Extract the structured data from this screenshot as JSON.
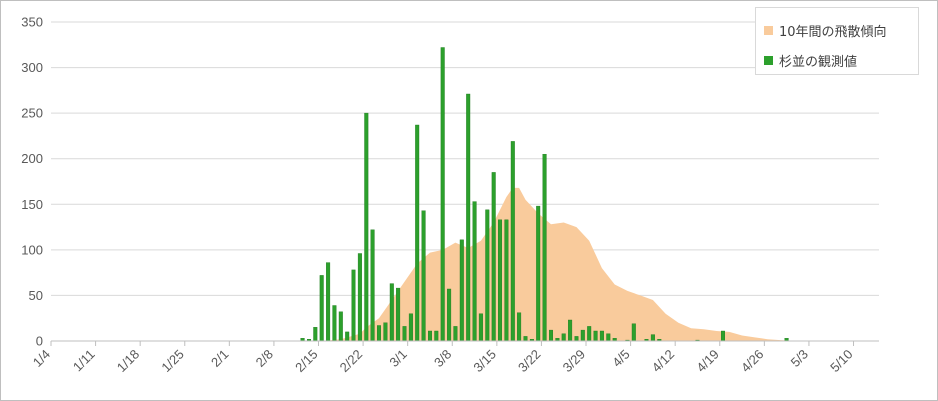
{
  "chart_data": {
    "type": "bar",
    "start_date": "1/4",
    "day_count": 130,
    "ylim": [
      0,
      350
    ],
    "yticks": [
      0,
      50,
      100,
      150,
      200,
      250,
      300,
      350
    ],
    "xtick_labels": [
      "1/4",
      "1/11",
      "1/18",
      "1/25",
      "2/1",
      "2/8",
      "2/15",
      "2/22",
      "3/1",
      "3/8",
      "3/15",
      "3/22",
      "3/29",
      "4/5",
      "4/12",
      "4/19",
      "4/26",
      "5/3",
      "5/10"
    ],
    "grid": true,
    "legend_position": "top-right",
    "colors": {
      "area": "#F9CB9C",
      "bars": "#2CA02C",
      "bar_edge": "#1E7B1E",
      "grid": "#D9D9D9",
      "axis": "#BFBFBF"
    },
    "series": [
      {
        "name": "10年間の飛散傾向",
        "kind": "area",
        "points": [
          [
            "2/15",
            0
          ],
          [
            "2/18",
            2
          ],
          [
            "2/21",
            8
          ],
          [
            "2/22",
            15
          ],
          [
            "2/24",
            25
          ],
          [
            "2/26",
            45
          ],
          [
            "2/28",
            65
          ],
          [
            "3/1",
            85
          ],
          [
            "3/3",
            97
          ],
          [
            "3/5",
            100
          ],
          [
            "3/7",
            108
          ],
          [
            "3/9",
            102
          ],
          [
            "3/11",
            110
          ],
          [
            "3/13",
            130
          ],
          [
            "3/15",
            158
          ],
          [
            "3/16",
            168
          ],
          [
            "3/17",
            168
          ],
          [
            "3/18",
            155
          ],
          [
            "3/20",
            140
          ],
          [
            "3/22",
            128
          ],
          [
            "3/24",
            130
          ],
          [
            "3/26",
            125
          ],
          [
            "3/28",
            110
          ],
          [
            "3/30",
            80
          ],
          [
            "4/1",
            62
          ],
          [
            "4/3",
            55
          ],
          [
            "4/5",
            50
          ],
          [
            "4/7",
            45
          ],
          [
            "4/9",
            30
          ],
          [
            "4/11",
            20
          ],
          [
            "4/13",
            14
          ],
          [
            "4/15",
            13
          ],
          [
            "4/17",
            11
          ],
          [
            "4/19",
            10
          ],
          [
            "4/21",
            6
          ],
          [
            "4/23",
            4
          ],
          [
            "4/25",
            2
          ],
          [
            "4/27",
            1
          ],
          [
            "4/30",
            0
          ]
        ]
      },
      {
        "name": "杉並の観測値",
        "kind": "bar",
        "points": [
          [
            "2/12",
            3
          ],
          [
            "2/13",
            2
          ],
          [
            "2/14",
            15
          ],
          [
            "2/15",
            72
          ],
          [
            "2/16",
            86
          ],
          [
            "2/17",
            39
          ],
          [
            "2/18",
            32
          ],
          [
            "2/19",
            10
          ],
          [
            "2/20",
            78
          ],
          [
            "2/21",
            96
          ],
          [
            "2/22",
            250
          ],
          [
            "2/23",
            122
          ],
          [
            "2/24",
            17
          ],
          [
            "2/25",
            20
          ],
          [
            "2/26",
            63
          ],
          [
            "2/27",
            58
          ],
          [
            "2/28",
            16
          ],
          [
            "2/29",
            30
          ],
          [
            "3/1",
            237
          ],
          [
            "3/2",
            143
          ],
          [
            "3/3",
            11
          ],
          [
            "3/4",
            11
          ],
          [
            "3/5",
            322
          ],
          [
            "3/6",
            57
          ],
          [
            "3/7",
            16
          ],
          [
            "3/8",
            111
          ],
          [
            "3/9",
            271
          ],
          [
            "3/10",
            153
          ],
          [
            "3/11",
            30
          ],
          [
            "3/12",
            144
          ],
          [
            "3/13",
            185
          ],
          [
            "3/14",
            133
          ],
          [
            "3/15",
            133
          ],
          [
            "3/16",
            219
          ],
          [
            "3/17",
            31
          ],
          [
            "3/18",
            5
          ],
          [
            "3/19",
            2
          ],
          [
            "3/20",
            148
          ],
          [
            "3/21",
            205
          ],
          [
            "3/22",
            12
          ],
          [
            "3/23",
            3
          ],
          [
            "3/24",
            8
          ],
          [
            "3/25",
            23
          ],
          [
            "3/26",
            5
          ],
          [
            "3/27",
            12
          ],
          [
            "3/28",
            16
          ],
          [
            "3/29",
            11
          ],
          [
            "3/30",
            11
          ],
          [
            "3/31",
            8
          ],
          [
            "4/1",
            3
          ],
          [
            "4/3",
            1
          ],
          [
            "4/4",
            19
          ],
          [
            "4/6",
            2
          ],
          [
            "4/7",
            7
          ],
          [
            "4/8",
            2
          ],
          [
            "4/14",
            1
          ],
          [
            "4/18",
            11
          ],
          [
            "4/28",
            3
          ]
        ]
      }
    ]
  }
}
